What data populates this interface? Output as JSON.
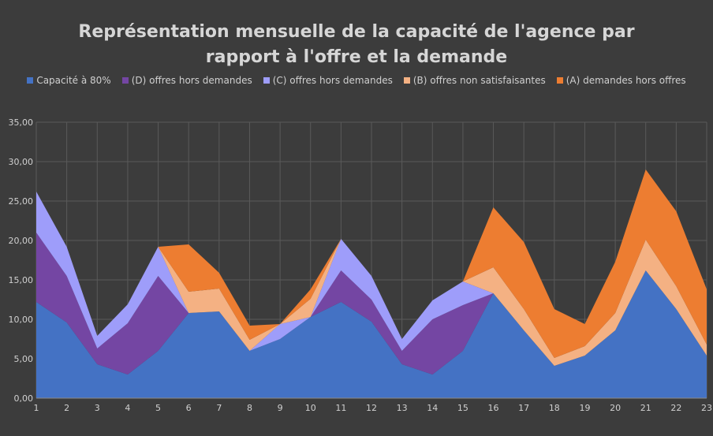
{
  "chart_data": {
    "type": "area",
    "title_lines": [
      "Représentation mensuelle de la capacité de l'agence par",
      "rapport à l'offre et la demande"
    ],
    "categories": [
      "1",
      "2",
      "3",
      "4",
      "5",
      "6",
      "7",
      "8",
      "9",
      "10",
      "11",
      "12",
      "13",
      "14",
      "15",
      "16",
      "17",
      "18",
      "19",
      "20",
      "21",
      "22",
      "23"
    ],
    "y_tick_labels": [
      "0,00",
      "5,00",
      "10,00",
      "15,00",
      "20,00",
      "25,00",
      "30,00",
      "35,00"
    ],
    "ylim": [
      0,
      35
    ],
    "stacked": true,
    "grid": true,
    "legend_position": "top",
    "series": [
      {
        "name": "Capacité à 80%",
        "color": "#4472c4",
        "values": [
          12.2,
          9.6,
          4.3,
          3.0,
          6.0,
          10.8,
          11.0,
          6.0,
          7.5,
          10.3,
          12.2,
          9.7,
          4.3,
          3.0,
          6.0,
          13.3,
          8.6,
          4.1,
          5.4,
          8.6,
          16.2,
          11.3,
          5.4
        ]
      },
      {
        "name": "(D) offres hors demandes",
        "color": "#7446a3",
        "values": [
          8.8,
          5.9,
          2.0,
          6.5,
          9.5,
          0,
          0,
          0,
          0,
          0,
          4.0,
          2.8,
          1.7,
          7.0,
          5.8,
          0,
          0,
          0,
          0,
          0,
          0,
          0,
          0
        ]
      },
      {
        "name": "(C) offres hors demandes",
        "color": "#9e9dfa",
        "values": [
          5.2,
          3.7,
          1.6,
          2.4,
          3.7,
          0,
          0,
          0,
          1.9,
          0,
          4.0,
          3.0,
          1.5,
          2.4,
          3.0,
          0,
          0,
          0,
          0,
          0,
          0,
          0,
          0
        ]
      },
      {
        "name": "(B) offres non satisfaisantes",
        "color": "#f4b183",
        "values": [
          0,
          0,
          0,
          0,
          0,
          2.7,
          2.9,
          1.4,
          0,
          2.3,
          0,
          0,
          0,
          0,
          0,
          3.3,
          2.7,
          1.0,
          1.2,
          2.2,
          3.9,
          2.9,
          1.4
        ]
      },
      {
        "name": "(A) demandes hors offres",
        "color": "#ed7d31",
        "values": [
          0,
          0,
          0,
          0,
          0,
          6.0,
          2.0,
          1.8,
          0,
          1.2,
          0,
          0,
          0,
          0,
          0,
          7.6,
          8.5,
          6.2,
          2.8,
          6.5,
          8.9,
          9.5,
          7.0
        ]
      }
    ]
  }
}
